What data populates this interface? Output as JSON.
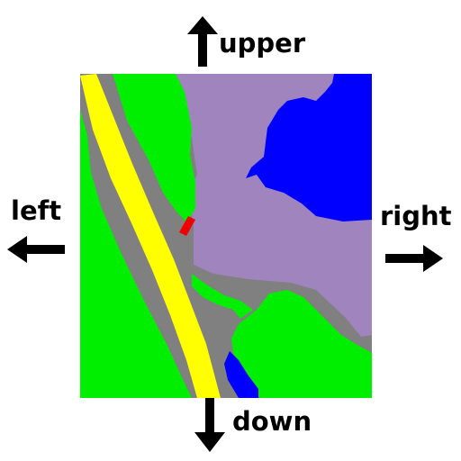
{
  "directions": {
    "upper": "upper",
    "left": "left",
    "right": "right",
    "down": "down"
  },
  "colors": {
    "vegetation": "#00ee00",
    "road": "#ffff00",
    "paved_ground": "#808080",
    "building_area": "#9f84bd",
    "water": "#0000ff",
    "marker": "#ee0000",
    "arrow": "#000000"
  },
  "icons": {
    "up": "arrow-up-icon",
    "left": "arrow-left-icon",
    "right": "arrow-right-icon",
    "down": "arrow-down-icon"
  }
}
